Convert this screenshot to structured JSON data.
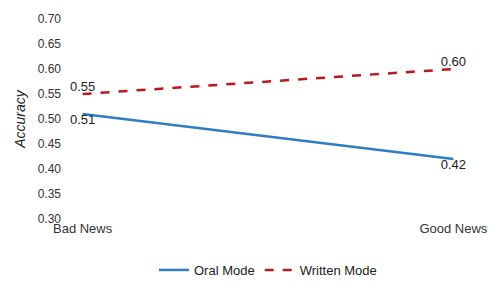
{
  "chart_data": {
    "type": "line",
    "y_label": "Accuracy",
    "categories": [
      "Bad News",
      "Good News"
    ],
    "series": [
      {
        "name": "Oral Mode",
        "color": "#2f7ec4",
        "line_style": "solid",
        "values": [
          0.51,
          0.42
        ],
        "value_labels": [
          "0.51",
          "0.42"
        ]
      },
      {
        "name": "Written Mode",
        "color": "#c0161b",
        "line_style": "dashed",
        "values": [
          0.55,
          0.6
        ],
        "value_labels": [
          "0.55",
          "0.60"
        ]
      }
    ],
    "ylim": [
      0.3,
      0.7
    ],
    "yticks": [
      {
        "value": 0.3,
        "label": "0.30"
      },
      {
        "value": 0.35,
        "label": "0.35"
      },
      {
        "value": 0.4,
        "label": "0.40"
      },
      {
        "value": 0.45,
        "label": "0.45"
      },
      {
        "value": 0.5,
        "label": "0.50"
      },
      {
        "value": 0.55,
        "label": "0.55"
      },
      {
        "value": 0.6,
        "label": "0.60"
      },
      {
        "value": 0.65,
        "label": "0.65"
      },
      {
        "value": 0.7,
        "label": "0.70"
      }
    ],
    "grid": false,
    "legend": "bottom",
    "data_labels": true
  }
}
